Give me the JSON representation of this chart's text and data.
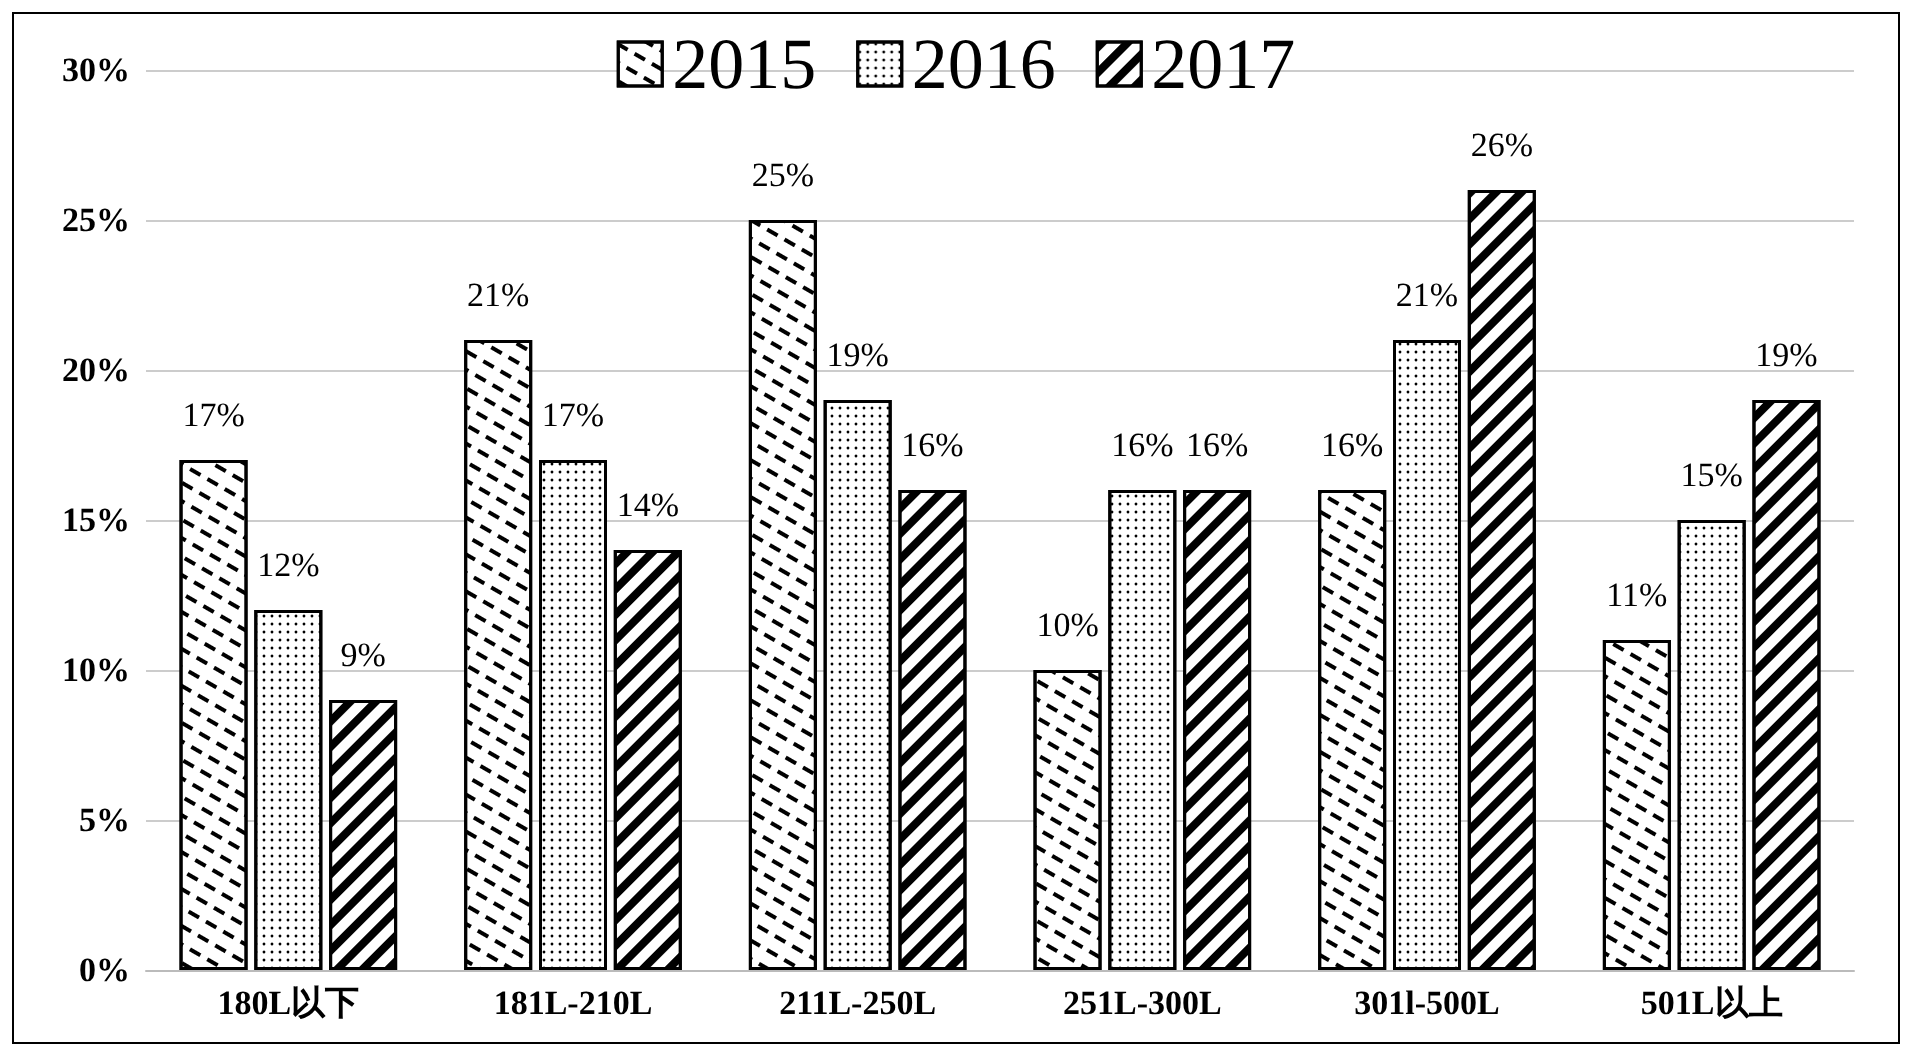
{
  "chart_data": {
    "type": "bar",
    "categories": [
      "180L以下",
      "181L-210L",
      "211L-250L",
      "251L-300L",
      "301l-500L",
      "501L以上"
    ],
    "series": [
      {
        "name": "2015",
        "color": "#ffffff",
        "values": [
          17,
          21,
          25,
          10,
          16,
          11
        ],
        "value_labels": [
          "17%",
          "21%",
          "25%",
          "10%",
          "16%",
          "11%"
        ]
      },
      {
        "name": "2016",
        "color": "#ffffff",
        "values": [
          12,
          17,
          19,
          16,
          21,
          15
        ],
        "value_labels": [
          "12%",
          "17%",
          "19%",
          "16%",
          "21%",
          "15%"
        ]
      },
      {
        "name": "2017",
        "color": "#ffffff",
        "values": [
          9,
          14,
          16,
          16,
          26,
          19
        ],
        "value_labels": [
          "9%",
          "14%",
          "16%",
          "16%",
          "26%",
          "19%"
        ]
      }
    ],
    "ylim": [
      0,
      30
    ],
    "yticks": [
      {
        "value": 0,
        "label": "0%"
      },
      {
        "value": 5,
        "label": "5%"
      },
      {
        "value": 10,
        "label": "10%"
      },
      {
        "value": 15,
        "label": "15%"
      },
      {
        "value": 20,
        "label": "20%"
      },
      {
        "value": 25,
        "label": "25%"
      },
      {
        "value": 30,
        "label": "30%"
      }
    ],
    "grid": "y",
    "legend": "top"
  }
}
